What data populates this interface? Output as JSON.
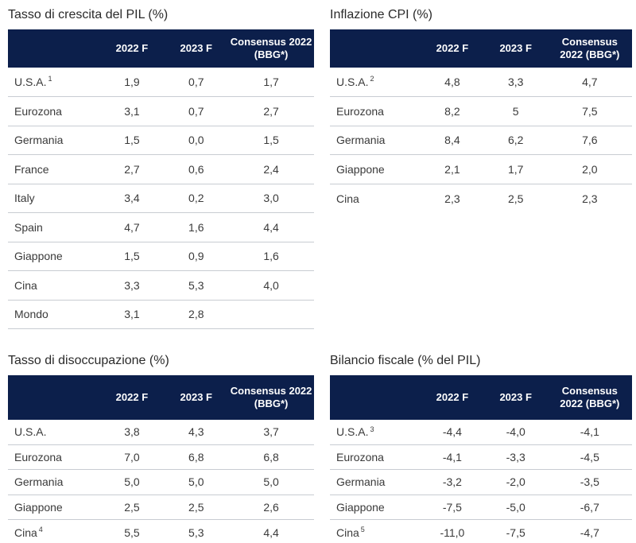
{
  "headers": {
    "col1": "2022 F",
    "col2": "2023 F",
    "col3": "Consensus 2022 (BBG*)"
  },
  "gdp": {
    "title": "Tasso di crescita del PIL (%)",
    "rows": [
      {
        "label": "U.S.A.",
        "note": "1",
        "v1": "1,9",
        "v2": "0,7",
        "v3": "1,7"
      },
      {
        "label": "Eurozona",
        "note": "",
        "v1": "3,1",
        "v2": "0,7",
        "v3": "2,7"
      },
      {
        "label": "Germania",
        "note": "",
        "v1": "1,5",
        "v2": "0,0",
        "v3": "1,5"
      },
      {
        "label": "France",
        "note": "",
        "v1": "2,7",
        "v2": "0,6",
        "v3": "2,4"
      },
      {
        "label": "Italy",
        "note": "",
        "v1": "3,4",
        "v2": "0,2",
        "v3": "3,0"
      },
      {
        "label": "Spain",
        "note": "",
        "v1": "4,7",
        "v2": "1,6",
        "v3": "4,4"
      },
      {
        "label": "Giappone",
        "note": "",
        "v1": "1,5",
        "v2": "0,9",
        "v3": "1,6"
      },
      {
        "label": "Cina",
        "note": "",
        "v1": "3,3",
        "v2": "5,3",
        "v3": "4,0"
      },
      {
        "label": "Mondo",
        "note": "",
        "v1": "3,1",
        "v2": "2,8",
        "v3": ""
      }
    ]
  },
  "cpi": {
    "title": "Inflazione CPI (%)",
    "rows": [
      {
        "label": "U.S.A.",
        "note": "2",
        "v1": "4,8",
        "v2": "3,3",
        "v3": "4,7"
      },
      {
        "label": "Eurozona",
        "note": "",
        "v1": "8,2",
        "v2": "5",
        "v3": "7,5"
      },
      {
        "label": "Germania",
        "note": "",
        "v1": "8,4",
        "v2": "6,2",
        "v3": "7,6"
      },
      {
        "label": "Giappone",
        "note": "",
        "v1": "2,1",
        "v2": "1,7",
        "v3": "2,0"
      },
      {
        "label": "Cina",
        "note": "",
        "v1": "2,3",
        "v2": "2,5",
        "v3": "2,3"
      }
    ]
  },
  "unemployment": {
    "title": "Tasso di disoccupazione (%)",
    "rows": [
      {
        "label": "U.S.A.",
        "note": "",
        "v1": "3,8",
        "v2": "4,3",
        "v3": "3,7"
      },
      {
        "label": "Eurozona",
        "note": "",
        "v1": "7,0",
        "v2": "6,8",
        "v3": "6,8"
      },
      {
        "label": "Germania",
        "note": "",
        "v1": "5,0",
        "v2": "5,0",
        "v3": "5,0"
      },
      {
        "label": "Giappone",
        "note": "",
        "v1": "2,5",
        "v2": "2,5",
        "v3": "2,6"
      },
      {
        "label": "Cina",
        "note": "4",
        "v1": "5,5",
        "v2": "5,3",
        "v3": "4,4"
      }
    ]
  },
  "fiscal": {
    "title": "Bilancio fiscale (% del PIL)",
    "rows": [
      {
        "label": "U.S.A.",
        "note": "3",
        "v1": "-4,4",
        "v2": "-4,0",
        "v3": "-4,1"
      },
      {
        "label": "Eurozona",
        "note": "",
        "v1": "-4,1",
        "v2": "-3,3",
        "v3": "-4,5"
      },
      {
        "label": "Germania",
        "note": "",
        "v1": "-3,2",
        "v2": "-2,0",
        "v3": "-3,5"
      },
      {
        "label": "Giappone",
        "note": "",
        "v1": "-7,5",
        "v2": "-5,0",
        "v3": "-6,7"
      },
      {
        "label": "Cina",
        "note": "5",
        "v1": "-11,0",
        "v2": "-7,5",
        "v3": "-4,7"
      }
    ]
  }
}
